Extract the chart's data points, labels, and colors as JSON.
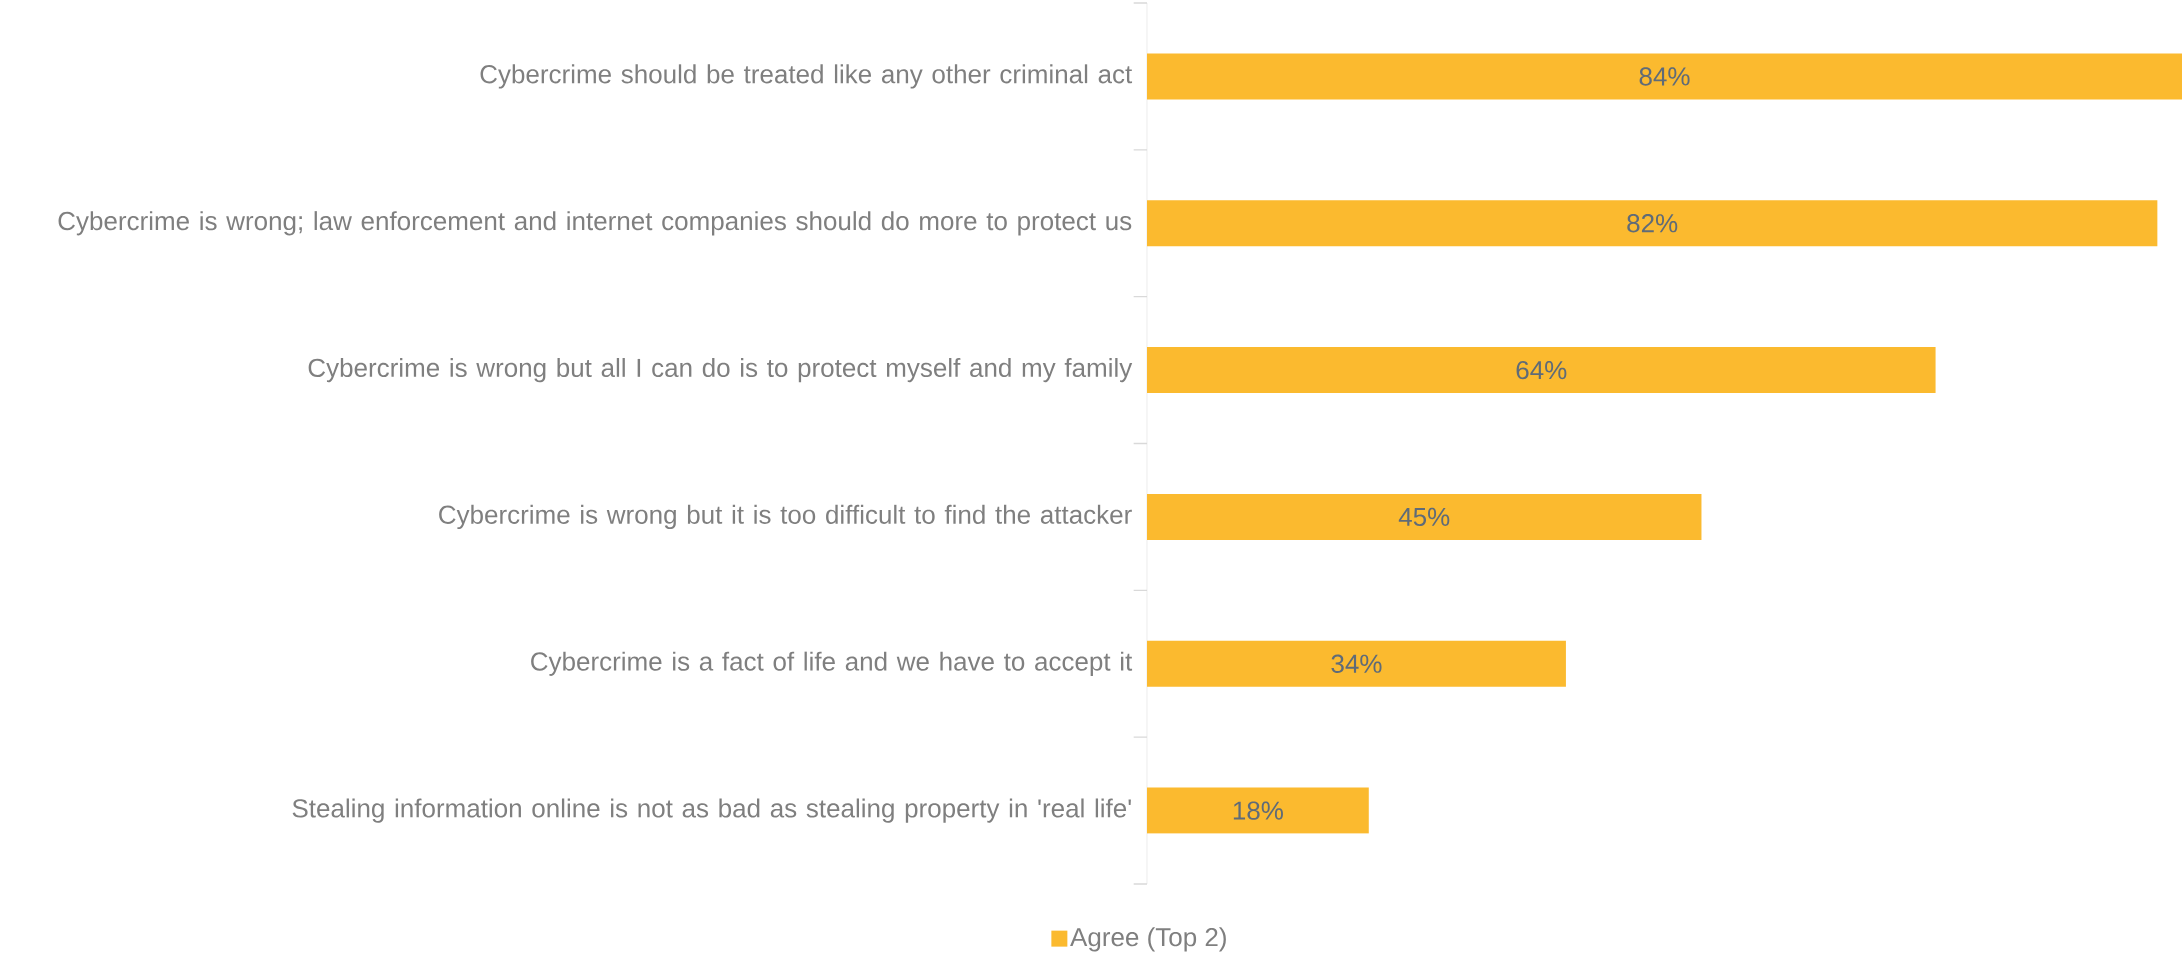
{
  "chart_data": {
    "type": "bar",
    "orientation": "horizontal",
    "categories": [
      "Cybercrime should be treated like any other criminal act",
      "Cybercrime is wrong; law enforcement and internet companies should do more to protect us",
      "Cybercrime is wrong but all I can do is to protect myself and my family",
      "Cybercrime is wrong but it is too difficult to find the attacker",
      "Cybercrime is a fact of life and we have to accept it",
      "Stealing information online is not as bad as stealing property in 'real life'"
    ],
    "series": [
      {
        "name": "Agree (Top 2)",
        "color": "#fbba2f",
        "values": [
          84,
          82,
          64,
          45,
          34,
          18
        ],
        "value_labels": [
          "84%",
          "82%",
          "64%",
          "45%",
          "34%",
          "18%"
        ]
      }
    ],
    "xlim": [
      0,
      84
    ],
    "tick_labels": "y",
    "grid": false,
    "legend": "bottom"
  }
}
